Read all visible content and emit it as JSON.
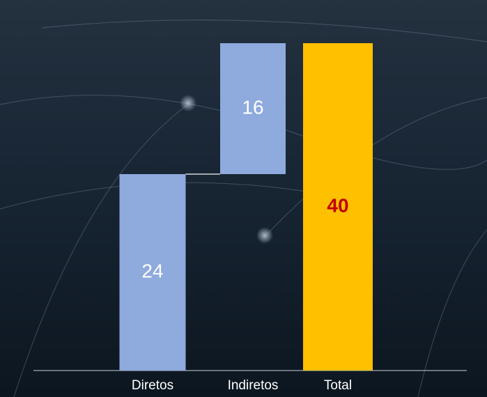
{
  "chart_data": {
    "type": "waterfall",
    "categories": [
      "Diretos",
      "Indiretos",
      "Total"
    ],
    "values": [
      24,
      16,
      40
    ],
    "is_total": [
      false,
      false,
      true
    ],
    "colors": [
      "#8faadc",
      "#8faadc",
      "#ffc000"
    ],
    "label_colors": [
      "#ffffff",
      "#ffffff",
      "#c00000"
    ]
  }
}
